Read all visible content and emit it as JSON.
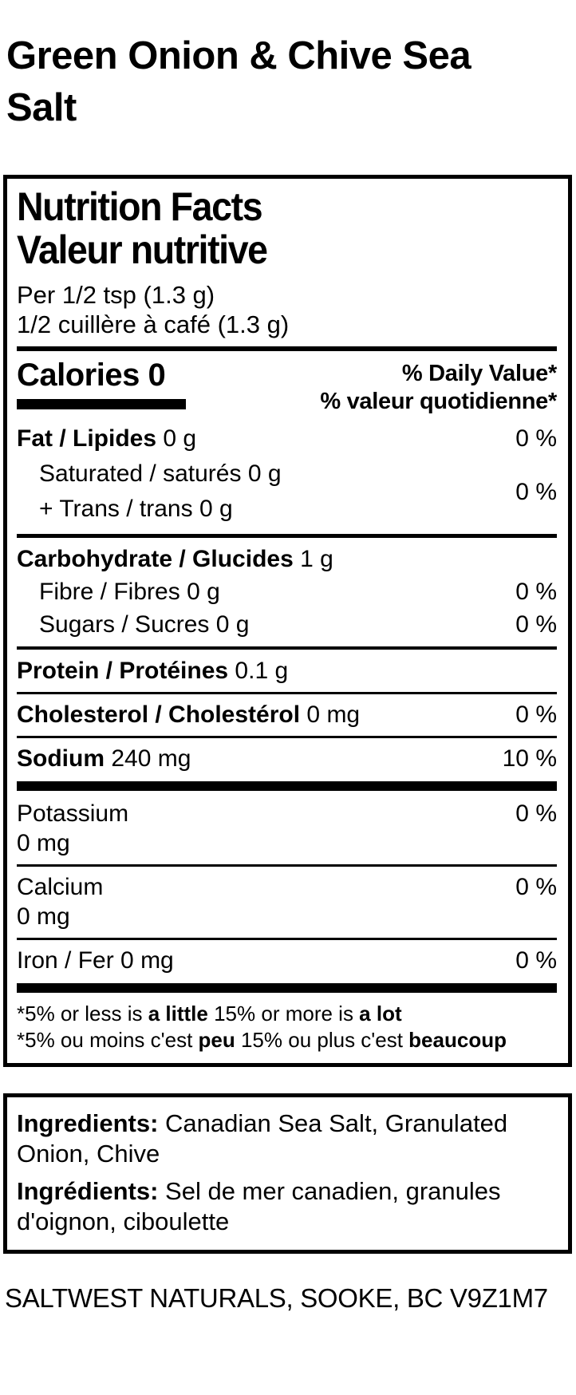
{
  "colors": {
    "text": "#000000",
    "background": "#ffffff"
  },
  "page": {
    "title": "Green Onion & Chive Sea Salt",
    "address": "SALTWEST NATURALS, SOOKE, BC V9Z1M7"
  },
  "nutrition": {
    "title_en": "Nutrition Facts",
    "title_fr": "Valeur nutritive",
    "serving_en": "Per 1/2 tsp (1.3 g)",
    "serving_fr": "1/2 cuillère à café (1.3 g)",
    "calories": "Calories 0",
    "dv_header_en": "% Daily Value*",
    "dv_header_fr": "% valeur quotidienne*",
    "rows": {
      "fat": {
        "label": "Fat / Lipides",
        "amount": "0 g",
        "dv": "0 %"
      },
      "saturated": {
        "label": "Saturated / saturés",
        "amount": "0 g"
      },
      "trans": {
        "label": "+ Trans / trans",
        "amount": "0 g"
      },
      "sat_trans_dv": "0 %",
      "carbohydrate": {
        "label": "Carbohydrate / Glucides",
        "amount": "1 g"
      },
      "fibre": {
        "label": "Fibre / Fibres",
        "amount": "0 g",
        "dv": "0 %"
      },
      "sugars": {
        "label": "Sugars / Sucres",
        "amount": "0 g",
        "dv": "0 %"
      },
      "protein": {
        "label": "Protein / Protéines",
        "amount": "0.1 g"
      },
      "cholesterol": {
        "label": "Cholesterol / Cholestérol",
        "amount": "0 mg",
        "dv": "0 %"
      },
      "sodium": {
        "label": "Sodium",
        "amount": "240 mg",
        "dv": "10 %"
      },
      "potassium": {
        "label": "Potassium",
        "amount": "0 mg",
        "dv": "0 %"
      },
      "calcium": {
        "label": "Calcium",
        "amount": "0 mg",
        "dv": "0 %"
      },
      "iron": {
        "label": "Iron / Fer",
        "amount": "0 mg",
        "dv": "0 %"
      }
    },
    "footnote_en": {
      "pre": "*5% or less is ",
      "b1": "a little",
      "mid": " 15% or more is ",
      "b2": "a lot"
    },
    "footnote_fr": {
      "pre": "*5% ou moins c'est ",
      "b1": "peu",
      "mid": " 15% ou plus c'est ",
      "b2": "beaucoup"
    }
  },
  "ingredients": {
    "label_en": "Ingredients:",
    "text_en": "Canadian Sea Salt, Granulated Onion, Chive",
    "label_fr": "Ingrédients:",
    "text_fr": "Sel de mer canadien, granules d'oignon, ciboulette"
  }
}
